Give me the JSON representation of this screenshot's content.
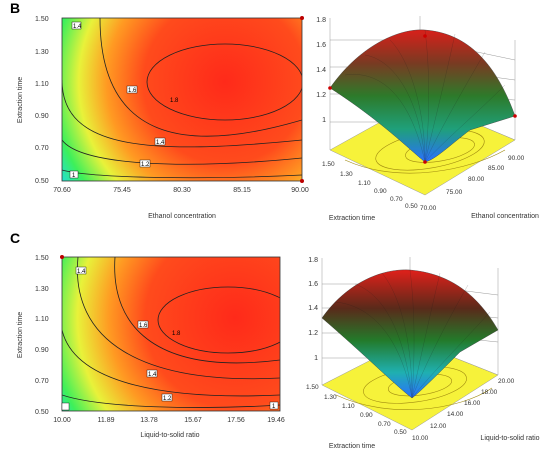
{
  "panels": [
    {
      "letter": "B",
      "chart_data": [
        {
          "type": "heatmap",
          "subtype": "contour",
          "xlabel": "Ethanol concentration",
          "ylabel": "Extraction time",
          "x_ticks": [
            "70.60",
            "75.45",
            "80.30",
            "85.15",
            "90.00"
          ],
          "y_ticks": [
            "0.50",
            "0.70",
            "0.90",
            "1.10",
            "1.30",
            "1.50"
          ],
          "xlim": [
            70.6,
            90.0
          ],
          "ylim": [
            0.5,
            1.5
          ],
          "contour_labels": [
            "1",
            "1.2",
            "1.4",
            "1.6",
            "1.4"
          ],
          "center_label": "1.8",
          "colors": [
            "#1f3cff",
            "#19d9ff",
            "#3df05a",
            "#e8f23a",
            "#ff9a22",
            "#ff2a1a"
          ]
        },
        {
          "type": "surface",
          "xlabel": "Extraction time",
          "ylabel": "Ethanol concentration",
          "z_ticks": [
            "1",
            "1.2",
            "1.4",
            "1.6",
            "1.8"
          ],
          "x_ticks": [
            "1.50",
            "1.30",
            "1.10",
            "0.90",
            "0.70",
            "0.50"
          ],
          "y_ticks": [
            "70.00",
            "75.00",
            "80.00",
            "85.00",
            "90.00"
          ],
          "zlim": [
            1,
            1.8
          ]
        }
      ]
    },
    {
      "letter": "C",
      "chart_data": [
        {
          "type": "heatmap",
          "subtype": "contour",
          "xlabel": "Liquid-to-solid ratio",
          "ylabel": "Extraction time",
          "x_ticks": [
            "10.00",
            "11.89",
            "13.78",
            "15.67",
            "17.56",
            "19.46"
          ],
          "y_ticks": [
            "0.50",
            "0.70",
            "0.90",
            "1.10",
            "1.30",
            "1.50"
          ],
          "xlim": [
            10.0,
            19.46
          ],
          "ylim": [
            0.5,
            1.5
          ],
          "contour_labels": [
            "1.4",
            "1.6",
            "1.4",
            "1.2",
            "1"
          ],
          "center_label": "1.8",
          "colors": [
            "#1f3cff",
            "#19d9ff",
            "#3df05a",
            "#e8f23a",
            "#ff9a22",
            "#ff2a1a"
          ]
        },
        {
          "type": "surface",
          "xlabel": "Extraction time",
          "ylabel": "Liquid-to-solid ratio",
          "z_ticks": [
            "1",
            "1.2",
            "1.4",
            "1.6",
            "1.8"
          ],
          "x_ticks": [
            "1.50",
            "1.30",
            "1.10",
            "0.90",
            "0.70",
            "0.50"
          ],
          "y_ticks": [
            "10.00",
            "12.00",
            "14.00",
            "16.00",
            "18.00",
            "20.00"
          ],
          "zlim": [
            1,
            1.8
          ]
        }
      ]
    }
  ]
}
